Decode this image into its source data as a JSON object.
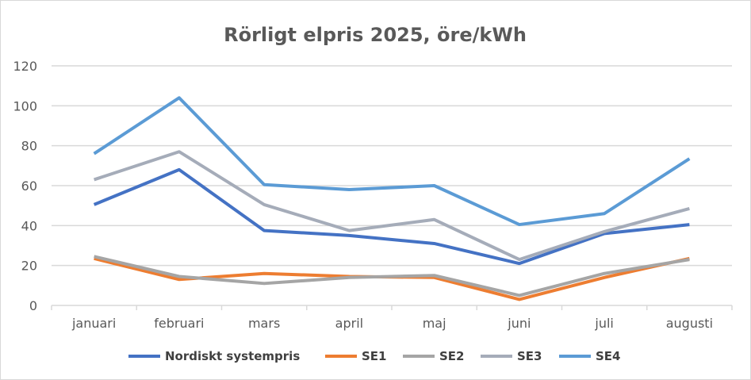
{
  "chart_data": {
    "type": "line",
    "title": "Rörligt elpris 2025, öre/kWh",
    "xlabel": "",
    "ylabel": "",
    "ylim": [
      0,
      120
    ],
    "yticks": [
      0,
      20,
      40,
      60,
      80,
      100,
      120
    ],
    "grid": true,
    "legend_position": "bottom",
    "categories": [
      "januari",
      "februari",
      "mars",
      "april",
      "maj",
      "juni",
      "juli",
      "augusti"
    ],
    "series": [
      {
        "name": "Nordiskt systempris",
        "color": "#4472c4",
        "values": [
          50.5,
          68,
          37.5,
          35,
          31,
          21,
          36,
          40.5
        ]
      },
      {
        "name": "SE1",
        "color": "#ed7d31",
        "values": [
          23.5,
          13,
          16,
          14.5,
          14,
          3,
          14,
          23.5
        ]
      },
      {
        "name": "SE2",
        "color": "#a5a5a5",
        "values": [
          24.5,
          14.5,
          11,
          14,
          15,
          5,
          16,
          23
        ]
      },
      {
        "name": "SE3",
        "color": "#a5acb9",
        "values": [
          63,
          77,
          50.5,
          37.5,
          43,
          23,
          37,
          48.5
        ]
      },
      {
        "name": "SE4",
        "color": "#5b9bd5",
        "values": [
          76,
          104,
          60.5,
          58,
          60,
          40.5,
          46,
          73.5
        ]
      }
    ]
  }
}
